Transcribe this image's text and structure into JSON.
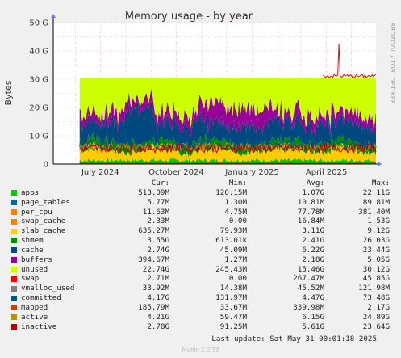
{
  "chart_data": {
    "type": "area",
    "title": "Memory usage - by year",
    "ylabel": "Bytes",
    "xlabel": "",
    "y_ticks": [
      "0",
      "10 G",
      "20 G",
      "30 G",
      "40 G",
      "50 G"
    ],
    "ylim": [
      0,
      50
    ],
    "y_unit": "G",
    "x_ticks": [
      {
        "label": "July 2024",
        "date": "2024-07-01"
      },
      {
        "label": "October 2024",
        "date": "2024-10-01"
      },
      {
        "label": "January 2025",
        "date": "2025-01-01"
      },
      {
        "label": "April 2025",
        "date": "2025-04-01"
      }
    ],
    "xlim": [
      "2024-05-05",
      "2025-05-31"
    ],
    "data_start": "2024-06-06",
    "grid": true,
    "side_text": "RRDTOOL / TOBI OETIKER",
    "columns": [
      "Cur:",
      "Min:",
      "Avg:",
      "Max:"
    ],
    "series": [
      {
        "name": "apps",
        "color": "#00cc00",
        "cur": "513.09M",
        "min": "120.15M",
        "avg": "1.07G",
        "max": "22.11G"
      },
      {
        "name": "page_tables",
        "color": "#0066b3",
        "cur": "5.77M",
        "min": "1.30M",
        "avg": "10.81M",
        "max": "89.81M"
      },
      {
        "name": "per_cpu",
        "color": "#ff8000",
        "cur": "11.63M",
        "min": "4.75M",
        "avg": "77.78M",
        "max": "381.40M"
      },
      {
        "name": "swap_cache",
        "color": "#ff8000",
        "cur": "2.33M",
        "min": "0.00",
        "avg": "16.84M",
        "max": "1.53G"
      },
      {
        "name": "slab_cache",
        "color": "#ffcc00",
        "cur": "635.27M",
        "min": "79.93M",
        "avg": "3.11G",
        "max": "9.12G"
      },
      {
        "name": "shmem",
        "color": "#008f00",
        "cur": "3.55G",
        "min": "613.01k",
        "avg": "2.41G",
        "max": "26.03G"
      },
      {
        "name": "cache",
        "color": "#00487d",
        "cur": "2.74G",
        "min": "45.09M",
        "avg": "6.22G",
        "max": "23.44G"
      },
      {
        "name": "buffers",
        "color": "#990099",
        "cur": "394.67M",
        "min": "1.27M",
        "avg": "2.18G",
        "max": "5.05G"
      },
      {
        "name": "unused",
        "color": "#ccff00",
        "cur": "22.74G",
        "min": "245.43M",
        "avg": "15.46G",
        "max": "30.12G"
      },
      {
        "name": "swap",
        "color": "#ff0000",
        "cur": "2.71M",
        "min": "0.00",
        "avg": "267.47M",
        "max": "45.85G"
      },
      {
        "name": "vmalloc_used",
        "color": "#808080",
        "cur": "33.92M",
        "min": "14.38M",
        "avg": "45.52M",
        "max": "121.98M"
      },
      {
        "name": "committed",
        "color": "#005782",
        "cur": "4.17G",
        "min": "131.97M",
        "avg": "4.47G",
        "max": "73.48G"
      },
      {
        "name": "mapped",
        "color": "#c84300",
        "cur": "185.79M",
        "min": "33.67M",
        "avg": "339.98M",
        "max": "2.17G"
      },
      {
        "name": "active",
        "color": "#bf9000",
        "cur": "4.21G",
        "min": "59.47M",
        "avg": "6.15G",
        "max": "24.89G"
      },
      {
        "name": "inactive",
        "color": "#bf0000",
        "cur": "2.78G",
        "min": "91.25M",
        "avg": "5.61G",
        "max": "23.64G"
      }
    ],
    "last_update": "Last update: Sat May 31 00:01:18 2025",
    "footer_text": "Munin 2.0.73"
  }
}
